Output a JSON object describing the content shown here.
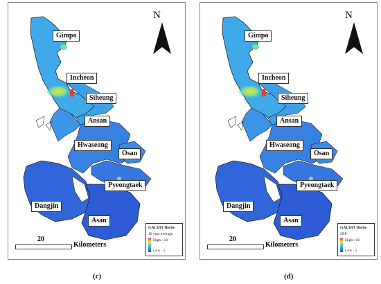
{
  "north_symbol": "N",
  "scale": {
    "value": "20",
    "unit": "Kilometers"
  },
  "cities": [
    "Gimpo",
    "Incheon",
    "Siheung",
    "Ansan",
    "Hwaseong",
    "Osan",
    "Pyeongtaek",
    "Dangjin",
    "Asan"
  ],
  "colors": {
    "low": "#2b4fd0",
    "mid": "#45d6d2",
    "high": "#f2e23a",
    "peak": "#e83a1e"
  },
  "panels": [
    {
      "caption": "(c)",
      "legend": {
        "title": "GALDIT Decile",
        "subtitle": "10 year average",
        "high": "High : 10",
        "low": "Low : 1"
      }
    },
    {
      "caption": "(d)",
      "legend": {
        "title": "GALDIT Decile",
        "subtitle": "SEP",
        "high": "High : 10",
        "low": "Low : 1"
      }
    }
  ]
}
